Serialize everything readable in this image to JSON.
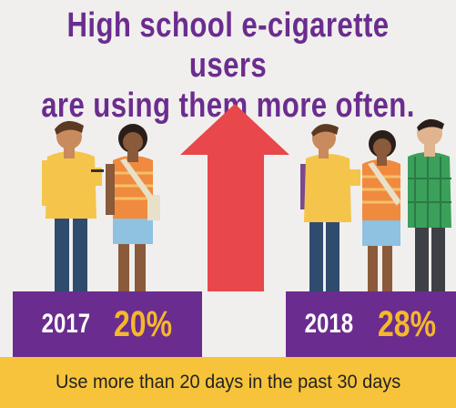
{
  "headline": {
    "line1": "High school e-cigarette users",
    "line2": "are using them more often."
  },
  "stats": [
    {
      "year": "2017",
      "percent": "20%"
    },
    {
      "year": "2018",
      "percent": "28%"
    }
  ],
  "footer": {
    "text": "Use more than 20 days in the past 30 days"
  },
  "colors": {
    "headline": "#6b2c8f",
    "stat_bar": "#6b2c8f",
    "percent": "#f5b82a",
    "footer_bg": "#f6c33a",
    "arrow": "#e8474b"
  },
  "icons": [
    "up-arrow-icon",
    "student-illustration"
  ]
}
